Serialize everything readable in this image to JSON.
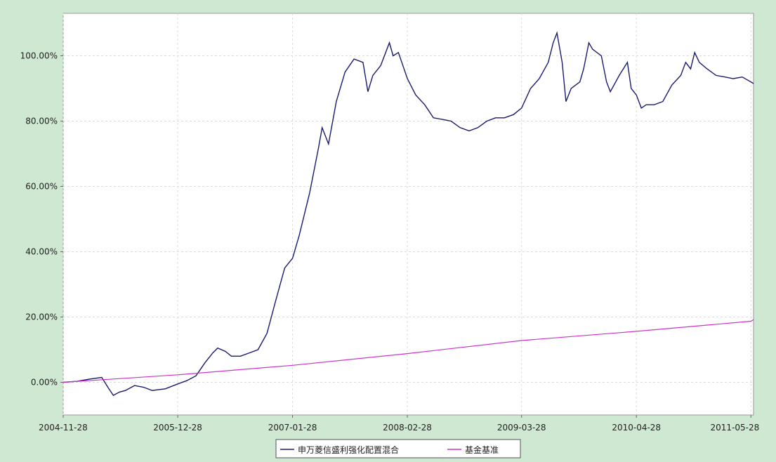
{
  "chart_data": {
    "type": "line",
    "title": "",
    "xlabel": "",
    "ylabel": "",
    "x_start": "2004-11-28",
    "x_end": "2011-06-06",
    "x_ticks": [
      "2004-11-28",
      "2005-12-28",
      "2007-01-28",
      "2008-02-28",
      "2009-03-28",
      "2010-04-28",
      "2011-05-28"
    ],
    "y_ticks": [
      "0.00%",
      "20.00%",
      "40.00%",
      "60.00%",
      "80.00%",
      "100.00%"
    ],
    "ylim": [
      -10,
      113
    ],
    "grid": true,
    "legend_position": "bottom-center",
    "colors": {
      "background": "#cfe8d2",
      "plot": "#ffffff",
      "fund": "#1a1a6e",
      "benchmark": "#cc33cc",
      "grid": "#dddddd"
    },
    "series": [
      {
        "name": "申万菱信盛利强化配置混合",
        "points": [
          [
            "2004-11-28",
            0
          ],
          [
            "2005-01-15",
            0.3
          ],
          [
            "2005-03-01",
            1.0
          ],
          [
            "2005-04-10",
            1.5
          ],
          [
            "2005-05-01",
            -1.5
          ],
          [
            "2005-05-20",
            -4.0
          ],
          [
            "2005-06-10",
            -3.0
          ],
          [
            "2005-07-01",
            -2.5
          ],
          [
            "2005-08-01",
            -1.0
          ],
          [
            "2005-09-01",
            -1.5
          ],
          [
            "2005-10-01",
            -2.5
          ],
          [
            "2005-11-15",
            -2.0
          ],
          [
            "2005-12-28",
            -0.5
          ],
          [
            "2006-01-28",
            0.5
          ],
          [
            "2006-03-01",
            2.0
          ],
          [
            "2006-04-01",
            6.0
          ],
          [
            "2006-04-28",
            9.0
          ],
          [
            "2006-05-15",
            10.5
          ],
          [
            "2006-06-10",
            9.5
          ],
          [
            "2006-07-01",
            8.0
          ],
          [
            "2006-08-01",
            8.0
          ],
          [
            "2006-09-01",
            9.0
          ],
          [
            "2006-10-01",
            10.0
          ],
          [
            "2006-11-01",
            15.0
          ],
          [
            "2006-12-01",
            25.0
          ],
          [
            "2007-01-01",
            35.0
          ],
          [
            "2007-01-28",
            38.0
          ],
          [
            "2007-02-20",
            45.0
          ],
          [
            "2007-03-28",
            58.0
          ],
          [
            "2007-04-28",
            72.0
          ],
          [
            "2007-05-10",
            78.0
          ],
          [
            "2007-06-01",
            73.0
          ],
          [
            "2007-06-28",
            86.0
          ],
          [
            "2007-07-28",
            95.0
          ],
          [
            "2007-08-28",
            99.0
          ],
          [
            "2007-09-28",
            98.0
          ],
          [
            "2007-10-15",
            89.0
          ],
          [
            "2007-11-01",
            94.0
          ],
          [
            "2007-11-28",
            97.0
          ],
          [
            "2007-12-28",
            104.0
          ],
          [
            "2008-01-10",
            100.0
          ],
          [
            "2008-01-28",
            101.0
          ],
          [
            "2008-02-28",
            93.0
          ],
          [
            "2008-03-28",
            88.0
          ],
          [
            "2008-04-28",
            85.0
          ],
          [
            "2008-05-28",
            81.0
          ],
          [
            "2008-06-28",
            80.5
          ],
          [
            "2008-07-28",
            80.0
          ],
          [
            "2008-08-28",
            78.0
          ],
          [
            "2008-09-28",
            77.0
          ],
          [
            "2008-10-28",
            78.0
          ],
          [
            "2008-11-28",
            80.0
          ],
          [
            "2008-12-28",
            81.0
          ],
          [
            "2009-01-28",
            81.0
          ],
          [
            "2009-02-28",
            82.0
          ],
          [
            "2009-03-28",
            84.0
          ],
          [
            "2009-04-28",
            90.0
          ],
          [
            "2009-05-28",
            93.0
          ],
          [
            "2009-06-28",
            98.0
          ],
          [
            "2009-07-15",
            104.0
          ],
          [
            "2009-07-28",
            107.0
          ],
          [
            "2009-08-15",
            98.0
          ],
          [
            "2009-08-28",
            86.0
          ],
          [
            "2009-09-15",
            90.0
          ],
          [
            "2009-10-15",
            92.0
          ],
          [
            "2009-10-28",
            96.0
          ],
          [
            "2009-11-15",
            104.0
          ],
          [
            "2009-11-28",
            102.0
          ],
          [
            "2009-12-28",
            100.0
          ],
          [
            "2010-01-15",
            92.0
          ],
          [
            "2010-01-28",
            89.0
          ],
          [
            "2010-02-28",
            94.0
          ],
          [
            "2010-03-28",
            98.0
          ],
          [
            "2010-04-10",
            90.0
          ],
          [
            "2010-04-28",
            88.0
          ],
          [
            "2010-05-15",
            84.0
          ],
          [
            "2010-06-01",
            85.0
          ],
          [
            "2010-06-28",
            85.0
          ],
          [
            "2010-07-28",
            86.0
          ],
          [
            "2010-08-28",
            91.0
          ],
          [
            "2010-09-28",
            94.0
          ],
          [
            "2010-10-15",
            98.0
          ],
          [
            "2010-11-01",
            96.0
          ],
          [
            "2010-11-15",
            101.0
          ],
          [
            "2010-12-01",
            98.0
          ],
          [
            "2010-12-28",
            96.0
          ],
          [
            "2011-01-28",
            94.0
          ],
          [
            "2011-02-28",
            93.5
          ],
          [
            "2011-03-28",
            93.0
          ],
          [
            "2011-04-28",
            93.5
          ],
          [
            "2011-05-28",
            92.0
          ],
          [
            "2011-06-06",
            91.5
          ]
        ]
      },
      {
        "name": "基金基准",
        "points": [
          [
            "2004-11-28",
            0
          ],
          [
            "2005-12-28",
            2.3
          ],
          [
            "2007-01-28",
            5.2
          ],
          [
            "2008-02-28",
            8.8
          ],
          [
            "2009-03-28",
            12.8
          ],
          [
            "2010-04-28",
            15.6
          ],
          [
            "2011-05-28",
            18.7
          ],
          [
            "2011-06-06",
            19.2
          ]
        ]
      }
    ]
  }
}
